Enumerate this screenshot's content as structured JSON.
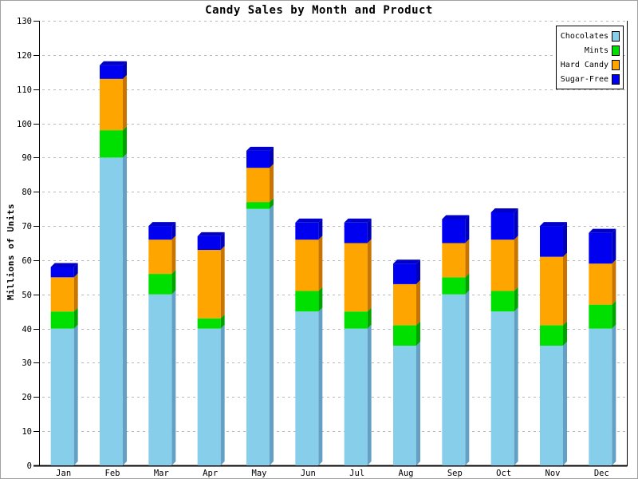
{
  "chart_data": {
    "type": "bar",
    "stacked": true,
    "style_3d": true,
    "title": "Candy Sales by Month and Product",
    "ylabel": "Millions of Units",
    "xlabel": "",
    "categories": [
      "Jan",
      "Feb",
      "Mar",
      "Apr",
      "May",
      "Jun",
      "Jul",
      "Aug",
      "Sep",
      "Oct",
      "Nov",
      "Dec"
    ],
    "series": [
      {
        "name": "Chocolates",
        "color": "#87CEEB",
        "side_color": "#64A0C3",
        "values": [
          40,
          90,
          50,
          40,
          75,
          45,
          40,
          35,
          50,
          45,
          35,
          40
        ]
      },
      {
        "name": "Mints",
        "color": "#00E000",
        "side_color": "#00A300",
        "values": [
          5,
          8,
          6,
          3,
          2,
          6,
          5,
          6,
          5,
          6,
          6,
          7
        ]
      },
      {
        "name": "Hard Candy",
        "color": "#FFA500",
        "side_color": "#C87400",
        "values": [
          10,
          15,
          10,
          20,
          10,
          15,
          20,
          12,
          10,
          15,
          20,
          12
        ]
      },
      {
        "name": "Sugar-Free",
        "color": "#0000F0",
        "side_color": "#0000B8",
        "top_color": "#0000C8",
        "values": [
          3,
          4,
          4,
          4,
          5,
          5,
          6,
          6,
          7,
          8,
          9,
          9
        ]
      }
    ],
    "totals": [
      58,
      117,
      70,
      67,
      92,
      71,
      71,
      59,
      72,
      74,
      70,
      68
    ],
    "ylim": [
      0,
      130
    ],
    "ytick_step": 10,
    "grid": "horizontal-dashed",
    "grid_color": "#B8B8B8",
    "axis_color": "#000000",
    "legend_position": "top-right"
  }
}
